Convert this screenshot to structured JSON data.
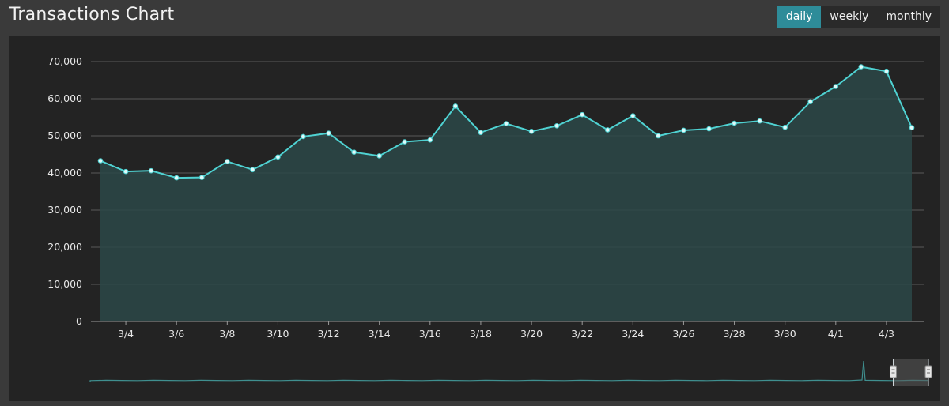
{
  "header": {
    "title": "Transactions Chart",
    "ranges": [
      {
        "label": "daily",
        "active": true
      },
      {
        "label": "weekly",
        "active": false
      },
      {
        "label": "monthly",
        "active": false
      }
    ]
  },
  "colors": {
    "line": "#4fd2d2",
    "area": "#2b4848",
    "grid": "#5a5a5a",
    "active_button": "#2e8c99"
  },
  "chart_data": {
    "type": "area",
    "title": "",
    "xlabel": "",
    "ylabel": "",
    "ylim": [
      0,
      70000
    ],
    "y_ticks": [
      "0",
      "10,000",
      "20,000",
      "30,000",
      "40,000",
      "50,000",
      "60,000",
      "70,000"
    ],
    "x_tick_labels": [
      "3/4",
      "3/6",
      "3/8",
      "3/10",
      "3/12",
      "3/14",
      "3/16",
      "3/18",
      "3/20",
      "3/22",
      "3/24",
      "3/26",
      "3/28",
      "3/30",
      "4/1",
      "4/3"
    ],
    "grid": true,
    "x": [
      "3/3",
      "3/4",
      "3/5",
      "3/6",
      "3/7",
      "3/8",
      "3/9",
      "3/10",
      "3/11",
      "3/12",
      "3/13",
      "3/14",
      "3/15",
      "3/16",
      "3/17",
      "3/18",
      "3/19",
      "3/20",
      "3/21",
      "3/22",
      "3/23",
      "3/24",
      "3/25",
      "3/26",
      "3/27",
      "3/28",
      "3/29",
      "3/30",
      "3/31",
      "4/1",
      "4/2",
      "4/3",
      "4/4"
    ],
    "series": [
      {
        "values": [
          43300,
          40400,
          40600,
          38700,
          38800,
          43100,
          40900,
          44300,
          49800,
          50700,
          45600,
          44600,
          48400,
          48900,
          58000,
          50900,
          53300,
          51200,
          52700,
          55700,
          51600,
          55400,
          50000,
          51500,
          51900,
          53400,
          54000,
          52300,
          59200,
          63300,
          68600,
          67400,
          52200
        ]
      }
    ],
    "navigator": {
      "range_start_fraction": 0.958,
      "range_end_fraction": 1.0
    }
  }
}
